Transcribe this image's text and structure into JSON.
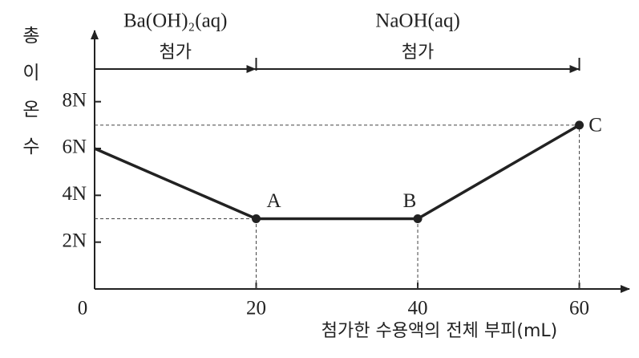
{
  "chart_data": {
    "type": "line",
    "x_label": "첨가한 수용액의 전체 부피(mL)",
    "y_label": "총 이온 수",
    "x": [
      0,
      20,
      40,
      60
    ],
    "series": [
      {
        "color": "#222222",
        "values": [
          6,
          3,
          3,
          7
        ],
        "point_labels": [
          null,
          "A",
          "B",
          "C"
        ]
      }
    ],
    "xlim": [
      0,
      66
    ],
    "ylim": [
      0,
      10.8
    ],
    "xticks": [
      0,
      20,
      40,
      60
    ],
    "yticks": [
      {
        "value": 2,
        "label": "2N"
      },
      {
        "value": 4,
        "label": "4N"
      },
      {
        "value": 6,
        "label": "6N"
      },
      {
        "value": 8,
        "label": "8N"
      }
    ],
    "additions": [
      {
        "reagent": "Ba(OH)₂(aq)",
        "text": "첨가",
        "from": 0,
        "to": 20
      },
      {
        "reagent": "NaOH(aq)",
        "text": "첨가",
        "from": 20,
        "to": 60
      }
    ]
  }
}
